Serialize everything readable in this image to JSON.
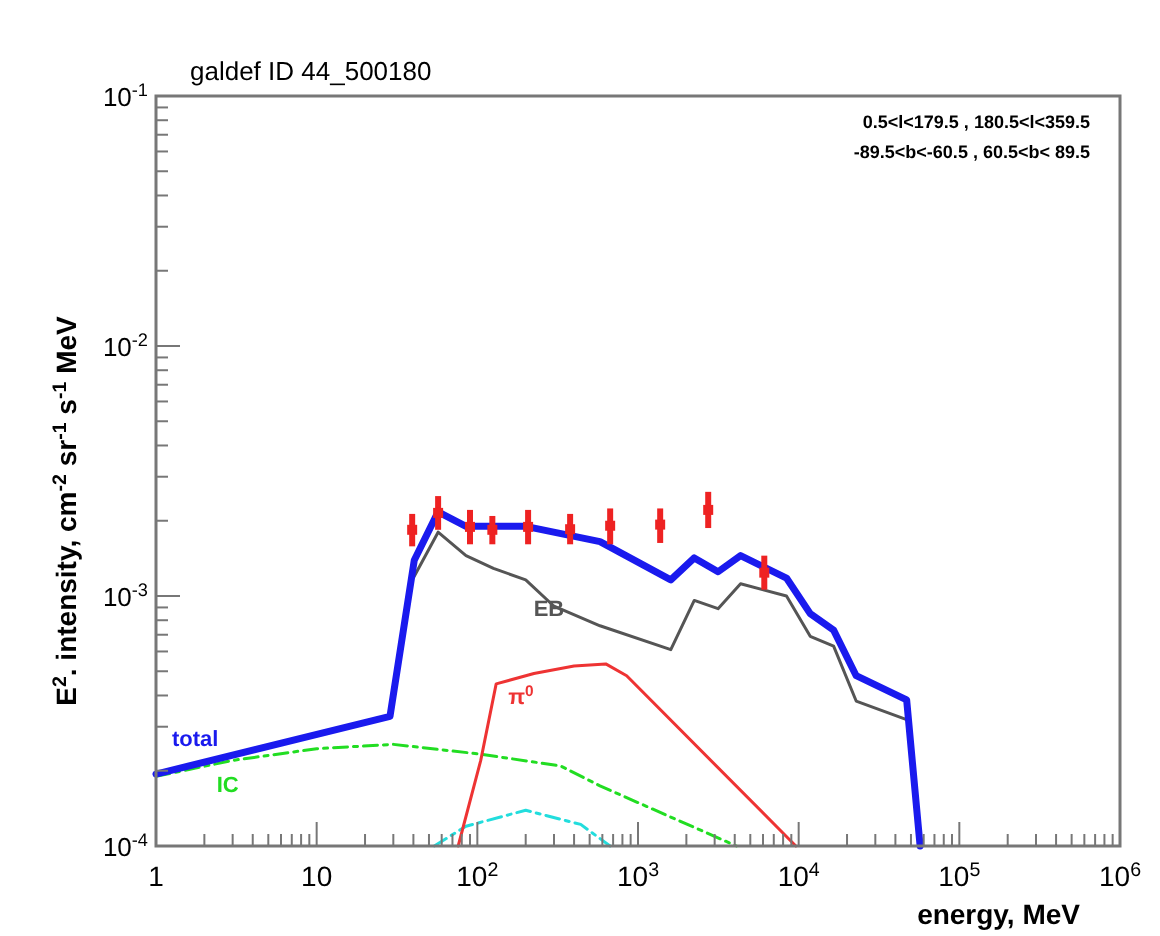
{
  "chart_data": {
    "type": "line",
    "title": "galdef ID 44_500180",
    "xlabel": "energy, MeV",
    "ylabel": "E$^{2}$. intensity, cm$^{-2}$ sr$^{-1}$ s$^{-1}$ MeV",
    "annotations": [
      "0.5<l<179.5 , 180.5<l<359.5",
      "-89.5<b<-60.5 , 60.5<b< 89.5"
    ],
    "log": "xy",
    "grid": false,
    "xlim": [
      1,
      1000000
    ],
    "ylim": [
      0.0001,
      0.1
    ],
    "xticks": [
      1,
      10,
      {
        "value": 100,
        "label": "10$^{2}$"
      },
      {
        "value": 1000,
        "label": "10$^{3}$"
      },
      {
        "value": 10000,
        "label": "10$^{4}$"
      },
      {
        "value": 100000,
        "label": "10$^{5}$"
      },
      {
        "value": 1000000,
        "label": "10$^{6}$"
      }
    ],
    "yticks": [
      {
        "value": 0.0001,
        "label": "10$^{-4}$"
      },
      {
        "value": 0.001,
        "label": "10$^{-3}$"
      },
      {
        "value": 0.01,
        "label": "10$^{-2}$"
      },
      {
        "value": 0.1,
        "label": "10$^{-1}$"
      }
    ],
    "series": [
      {
        "name": "IC",
        "color": "#22dd22",
        "line_style": "dashed",
        "x": [
          1,
          3,
          10,
          30,
          105,
          330,
          580,
          4100
        ],
        "values": [
          0.00019,
          0.00022,
          0.000245,
          0.000255,
          0.000233,
          0.000209,
          0.000174,
          0.0001
        ]
      },
      {
        "color": "#22dddd",
        "line_style": "dashed",
        "x": [
          54,
          85,
          200,
          440,
          670
        ],
        "values": [
          0.0001,
          0.00012,
          0.000139,
          0.000122,
          0.0001
        ]
      },
      {
        "name": "π$^{0}$",
        "color": "#ee3333",
        "line_style": "solid",
        "x": [
          76,
          105,
          131,
          225,
          400,
          630,
          850,
          9600
        ],
        "values": [
          0.0001,
          0.00022,
          0.000445,
          0.00049,
          0.000525,
          0.000535,
          0.00048,
          0.0001
        ]
      },
      {
        "name": "EB",
        "color": "#555555",
        "line_style": "solid",
        "x": [
          40.5,
          57,
          85,
          126,
          200,
          300,
          580,
          1600,
          2240,
          3150,
          4350,
          8400,
          11800,
          16500,
          22800,
          47000
        ],
        "values": [
          0.0012,
          0.0018,
          0.00145,
          0.00129,
          0.00116,
          0.00091,
          0.00076,
          0.00061,
          0.00096,
          0.00089,
          0.00112,
          0.001,
          0.00069,
          0.00063,
          0.00038,
          0.00032
        ]
      },
      {
        "name": "total",
        "color": "#1a1aee",
        "line_style": "solid",
        "x": [
          1,
          28.6,
          40.5,
          57,
          85,
          200,
          580,
          1600,
          2240,
          3150,
          4350,
          8400,
          11800,
          16500,
          22800,
          47000,
          57000
        ],
        "values": [
          0.000194,
          0.00033,
          0.00139,
          0.00217,
          0.0019,
          0.0019,
          0.00165,
          0.00116,
          0.00142,
          0.00125,
          0.00145,
          0.00118,
          0.00085,
          0.00073,
          0.00048,
          0.000384,
          0.0001
        ]
      },
      {
        "type": "scatter",
        "marker": "square",
        "color": "#ee2222",
        "x": [
          39.3,
          57,
          90,
          124,
          207,
          378,
          671,
          1374,
          2735,
          6110
        ],
        "values": [
          0.00184,
          0.00215,
          0.00189,
          0.00184,
          0.00189,
          0.00185,
          0.00191,
          0.00193,
          0.00221,
          0.00124
        ],
        "errors": [
          [
            0.00158,
            0.00213
          ],
          [
            0.00184,
            0.00251
          ],
          [
            0.00161,
            0.00221
          ],
          [
            0.00161,
            0.00209
          ],
          [
            0.00161,
            0.00221
          ],
          [
            0.00161,
            0.00213
          ],
          [
            0.00161,
            0.00224
          ],
          [
            0.00163,
            0.00224
          ],
          [
            0.00187,
            0.00261
          ],
          [
            0.00106,
            0.00145
          ]
        ]
      }
    ]
  }
}
